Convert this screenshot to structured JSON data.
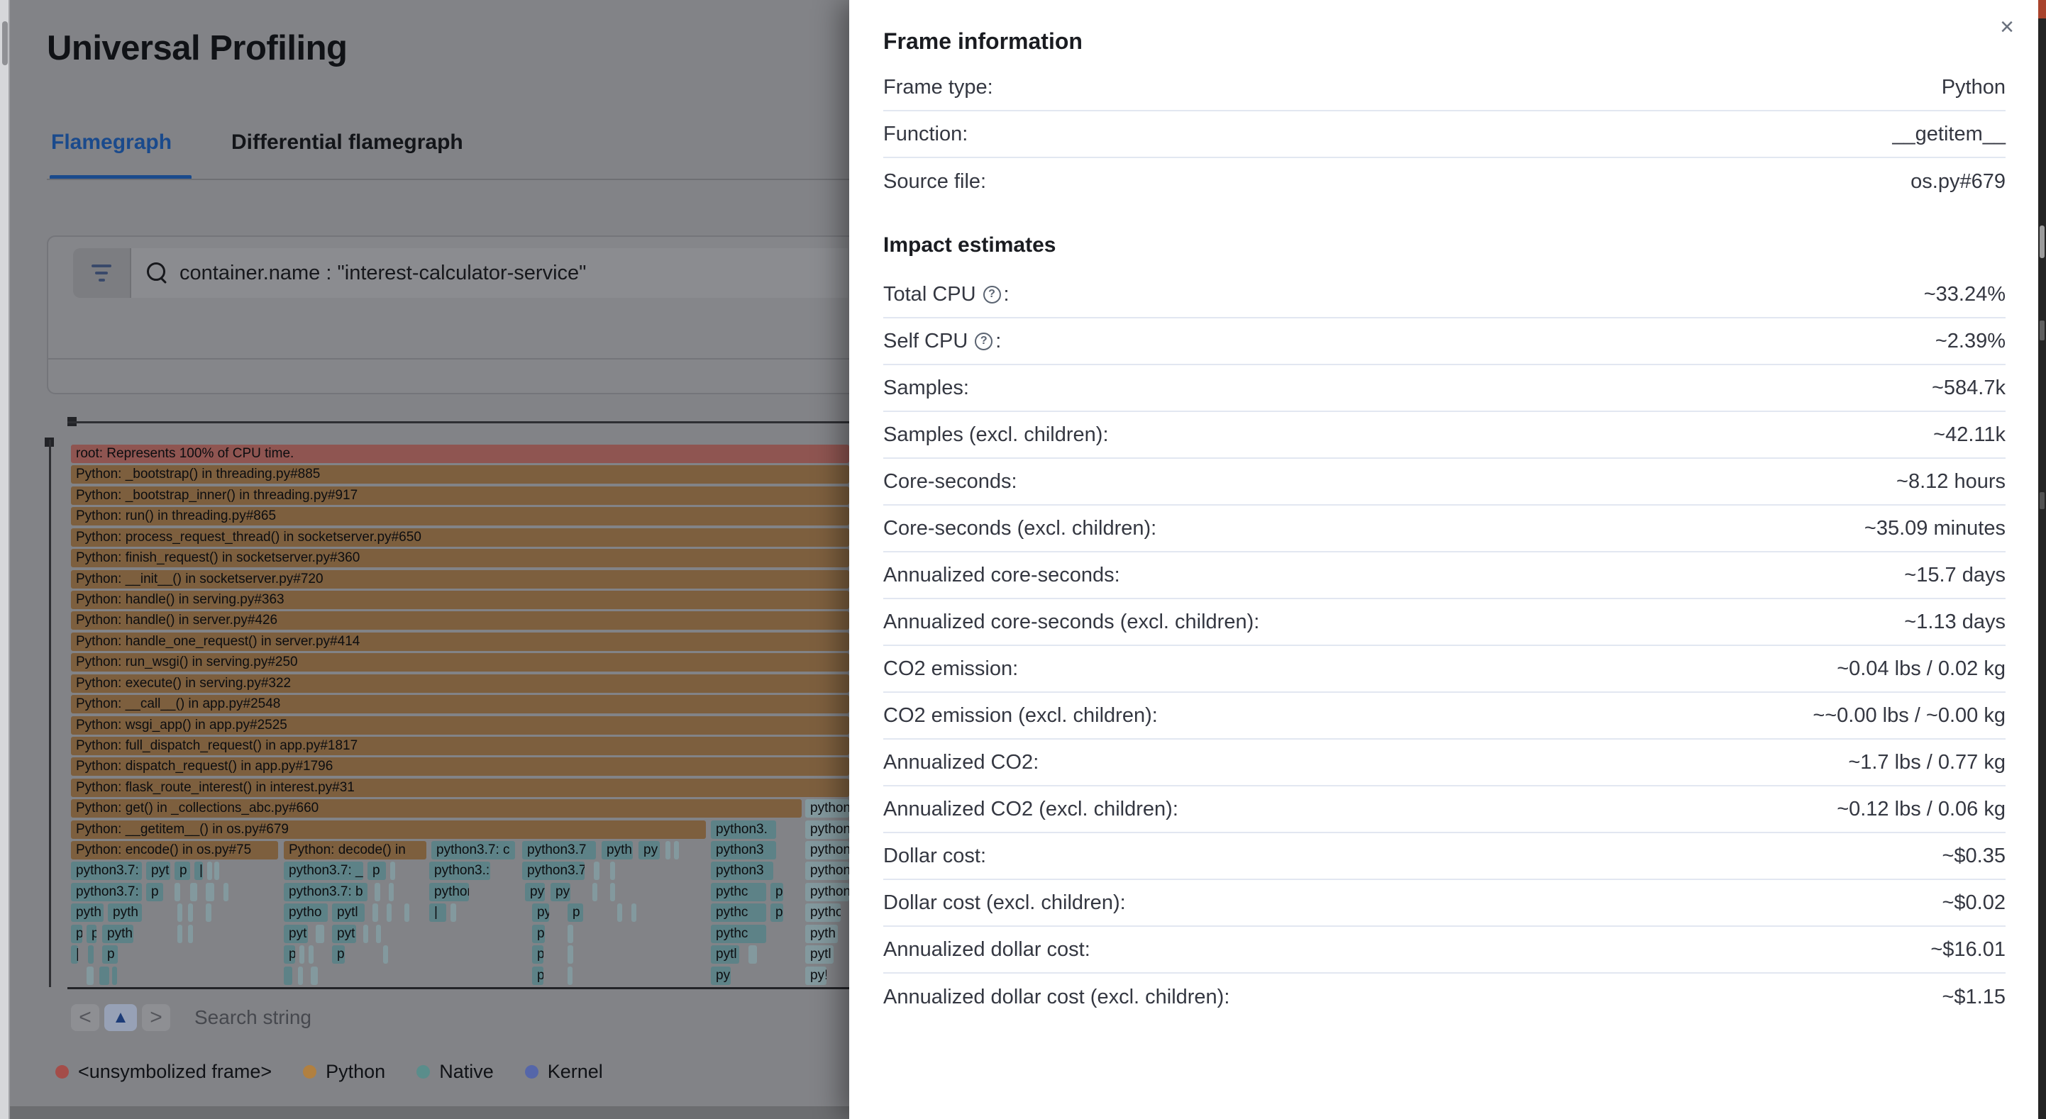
{
  "page": {
    "title": "Universal Profiling"
  },
  "tabs": [
    {
      "label": "Flamegraph",
      "active": true
    },
    {
      "label": "Differential flamegraph",
      "active": false
    }
  ],
  "search": {
    "query": "container.name : \"interest-calculator-service\""
  },
  "toolbar": {
    "prev_label": "<",
    "up_label": "▲",
    "next_label": ">",
    "search_placeholder": "Search string"
  },
  "icons": {
    "filter": "filter-icon",
    "search": "search-icon",
    "close": "×",
    "help": "?"
  },
  "colors": {
    "root": "#8f5551",
    "python": "#7d5f3e",
    "native": "#5d8287",
    "native_faded": "#83999e",
    "accent_blue": "#1a4a8c"
  },
  "legend": [
    {
      "label": "<unsymbolized frame>",
      "color": "#a44d49"
    },
    {
      "label": "Python",
      "color": "#b18040"
    },
    {
      "label": "Native",
      "color": "#5a8d8b"
    },
    {
      "label": "Kernel",
      "color": "#5566a9"
    }
  ],
  "flamegraph": {
    "rows": [
      {
        "blocks": [
          [
            0,
            1097,
            "r",
            "root: Represents 100% of CPU time."
          ]
        ]
      },
      {
        "blocks": [
          [
            0,
            1097,
            "p",
            "Python: _bootstrap() in threading.py#885"
          ]
        ]
      },
      {
        "blocks": [
          [
            0,
            1097,
            "p",
            "Python: _bootstrap_inner() in threading.py#917"
          ]
        ]
      },
      {
        "blocks": [
          [
            0,
            1097,
            "p",
            "Python: run() in threading.py#865"
          ]
        ]
      },
      {
        "blocks": [
          [
            0,
            1097,
            "p",
            "Python: process_request_thread() in socketserver.py#650"
          ]
        ]
      },
      {
        "blocks": [
          [
            0,
            1097,
            "p",
            "Python: finish_request() in socketserver.py#360"
          ]
        ]
      },
      {
        "blocks": [
          [
            0,
            1097,
            "p",
            "Python: __init__() in socketserver.py#720"
          ]
        ]
      },
      {
        "blocks": [
          [
            0,
            1097,
            "p",
            "Python: handle() in serving.py#363"
          ]
        ]
      },
      {
        "blocks": [
          [
            0,
            1097,
            "p",
            "Python: handle() in server.py#426"
          ]
        ]
      },
      {
        "blocks": [
          [
            0,
            1097,
            "p",
            "Python: handle_one_request() in server.py#414"
          ]
        ]
      },
      {
        "blocks": [
          [
            0,
            1097,
            "p",
            "Python: run_wsgi() in serving.py#250"
          ]
        ]
      },
      {
        "blocks": [
          [
            0,
            1097,
            "p",
            "Python: execute() in serving.py#322"
          ]
        ]
      },
      {
        "blocks": [
          [
            0,
            1097,
            "p",
            "Python: __call__() in app.py#2548"
          ]
        ]
      },
      {
        "blocks": [
          [
            0,
            1097,
            "p",
            "Python: wsgi_app() in app.py#2525"
          ]
        ]
      },
      {
        "blocks": [
          [
            0,
            1097,
            "p",
            "Python: full_dispatch_request() in app.py#1817"
          ]
        ]
      },
      {
        "blocks": [
          [
            0,
            1097,
            "p",
            "Python: dispatch_request() in app.py#1796"
          ]
        ]
      },
      {
        "blocks": [
          [
            0,
            1097,
            "p",
            "Python: flask_route_interest() in interest.py#31"
          ]
        ]
      },
      {
        "blocks": [
          [
            0,
            1030,
            "p",
            "Python: get() in _collections_abc.py#660"
          ],
          [
            1035,
            62,
            "f",
            "python"
          ]
        ]
      },
      {
        "blocks": [
          [
            0,
            895,
            "p",
            "Python: __getitem__() in os.py#679"
          ],
          [
            902,
            92,
            "n",
            "python3."
          ],
          [
            1035,
            62,
            "f",
            "python"
          ]
        ]
      },
      {
        "blocks": [
          [
            0,
            292,
            "p",
            "Python: encode() in os.py#75"
          ],
          [
            300,
            201,
            "p",
            "Python: decode() in"
          ],
          [
            508,
            118,
            "n",
            "python3.7: c"
          ],
          [
            636,
            104,
            "n",
            "python3.7"
          ],
          [
            748,
            44,
            "n",
            "pyth"
          ],
          [
            800,
            30,
            "n",
            "py"
          ],
          [
            838,
            6,
            "f",
            ""
          ],
          [
            850,
            5,
            "f",
            ""
          ],
          [
            902,
            92,
            "n",
            "python3"
          ],
          [
            1035,
            62,
            "f",
            "python"
          ]
        ]
      },
      {
        "blocks": [
          [
            0,
            100,
            "n",
            "python3.7:"
          ],
          [
            106,
            34,
            "n",
            "pyt"
          ],
          [
            146,
            22,
            "n",
            "p"
          ],
          [
            174,
            12,
            "n",
            "|"
          ],
          [
            192,
            5,
            "f",
            ""
          ],
          [
            202,
            4,
            "f",
            ""
          ],
          [
            300,
            112,
            "n",
            "python3.7: _"
          ],
          [
            418,
            26,
            "n",
            "p"
          ],
          [
            450,
            7,
            "f",
            ""
          ],
          [
            505,
            86,
            "n",
            "python3.:"
          ],
          [
            636,
            88,
            "n",
            "python3.7"
          ],
          [
            737,
            8,
            "f",
            ""
          ],
          [
            760,
            5,
            "f",
            ""
          ],
          [
            902,
            88,
            "n",
            "python3"
          ],
          [
            1035,
            62,
            "f",
            "python"
          ]
        ]
      },
      {
        "blocks": [
          [
            0,
            100,
            "n",
            "python3.7:"
          ],
          [
            106,
            24,
            "n",
            "p"
          ],
          [
            146,
            8,
            "f",
            ""
          ],
          [
            168,
            10,
            "f",
            ""
          ],
          [
            190,
            12,
            "f",
            ""
          ],
          [
            215,
            5,
            "f",
            ""
          ],
          [
            300,
            118,
            "n",
            "python3.7: b"
          ],
          [
            428,
            8,
            "f",
            ""
          ],
          [
            448,
            6,
            "f",
            ""
          ],
          [
            505,
            56,
            "n",
            "python"
          ],
          [
            640,
            28,
            "n",
            "pytl"
          ],
          [
            676,
            28,
            "n",
            "py!"
          ],
          [
            735,
            6,
            "f",
            ""
          ],
          [
            760,
            5,
            "f",
            ""
          ],
          [
            902,
            78,
            "n",
            "pythc"
          ],
          [
            986,
            18,
            "n",
            "p"
          ],
          [
            1035,
            62,
            "f",
            "python"
          ]
        ]
      },
      {
        "blocks": [
          [
            0,
            46,
            "n",
            "pyth"
          ],
          [
            52,
            48,
            "n",
            "pyth"
          ],
          [
            150,
            5,
            "f",
            ""
          ],
          [
            165,
            4,
            "f",
            ""
          ],
          [
            190,
            8,
            "f",
            ""
          ],
          [
            300,
            62,
            "n",
            "pytho"
          ],
          [
            368,
            46,
            "n",
            "pytl"
          ],
          [
            425,
            8,
            "f",
            ""
          ],
          [
            445,
            5,
            "f",
            ""
          ],
          [
            470,
            4,
            "f",
            ""
          ],
          [
            505,
            24,
            "n",
            "|"
          ],
          [
            535,
            8,
            "f",
            ""
          ],
          [
            650,
            24,
            "n",
            "py"
          ],
          [
            700,
            22,
            "n",
            "p"
          ],
          [
            770,
            5,
            "f",
            ""
          ],
          [
            790,
            4,
            "f",
            ""
          ],
          [
            902,
            78,
            "n",
            "pythc"
          ],
          [
            986,
            18,
            "n",
            "p"
          ],
          [
            1035,
            50,
            "f",
            "pytho"
          ]
        ]
      },
      {
        "blocks": [
          [
            0,
            16,
            "n",
            "p:"
          ],
          [
            22,
            14,
            "n",
            "p"
          ],
          [
            44,
            44,
            "n",
            "pyth"
          ],
          [
            150,
            5,
            "f",
            ""
          ],
          [
            165,
            4,
            "f",
            ""
          ],
          [
            300,
            34,
            "n",
            "pyt"
          ],
          [
            345,
            12,
            "f",
            ""
          ],
          [
            368,
            34,
            "n",
            "pyt"
          ],
          [
            412,
            6,
            "f",
            ""
          ],
          [
            430,
            4,
            "f",
            ""
          ],
          [
            650,
            18,
            "n",
            "p:"
          ],
          [
            700,
            8,
            "f",
            ""
          ],
          [
            902,
            78,
            "n",
            "pythc"
          ],
          [
            1035,
            46,
            "f",
            "pyth"
          ]
        ]
      },
      {
        "blocks": [
          [
            0,
            10,
            "n",
            "|"
          ],
          [
            24,
            8,
            "n",
            "|"
          ],
          [
            44,
            22,
            "n",
            "p"
          ],
          [
            300,
            16,
            "n",
            "p"
          ],
          [
            322,
            6,
            "f",
            ""
          ],
          [
            335,
            4,
            "f",
            ""
          ],
          [
            368,
            18,
            "n",
            "p"
          ],
          [
            440,
            4,
            "f",
            ""
          ],
          [
            650,
            16,
            "n",
            "p"
          ],
          [
            700,
            8,
            "f",
            ""
          ],
          [
            902,
            40,
            "n",
            "pytl"
          ],
          [
            955,
            12,
            "f",
            ""
          ],
          [
            1035,
            40,
            "f",
            "pytl"
          ]
        ]
      },
      {
        "blocks": [
          [
            22,
            10,
            "f",
            ""
          ],
          [
            40,
            14,
            "n",
            ""
          ],
          [
            58,
            6,
            "n",
            ""
          ],
          [
            300,
            12,
            "n",
            ""
          ],
          [
            320,
            4,
            "f",
            ""
          ],
          [
            338,
            10,
            "f",
            ""
          ],
          [
            650,
            16,
            "n",
            "p"
          ],
          [
            700,
            6,
            "f",
            ""
          ],
          [
            902,
            28,
            "n",
            "py"
          ],
          [
            1035,
            30,
            "f",
            "py!"
          ]
        ]
      },
      {
        "blocks": [
          [
            32,
            14,
            "n",
            ""
          ],
          [
            318,
            12,
            "n",
            ""
          ],
          [
            700,
            6,
            "f",
            ""
          ],
          [
            912,
            12,
            "n",
            ""
          ],
          [
            1035,
            18,
            "f",
            ""
          ]
        ]
      }
    ]
  },
  "flyout": {
    "title": "Frame information",
    "frame_rows": [
      {
        "label": "Frame type",
        "value": "Python",
        "help": false
      },
      {
        "label": "Function",
        "value": "__getitem__",
        "help": false
      },
      {
        "label": "Source file",
        "value": "os.py#679",
        "help": false
      }
    ],
    "impact_heading": "Impact estimates",
    "impact_rows": [
      {
        "label": "Total CPU",
        "value": "~33.24%",
        "help": true
      },
      {
        "label": "Self CPU",
        "value": "~2.39%",
        "help": true
      },
      {
        "label": "Samples",
        "value": "~584.7k",
        "help": false
      },
      {
        "label": "Samples (excl. children)",
        "value": "~42.11k",
        "help": false
      },
      {
        "label": "Core-seconds",
        "value": "~8.12 hours",
        "help": false
      },
      {
        "label": "Core-seconds (excl. children)",
        "value": "~35.09 minutes",
        "help": false
      },
      {
        "label": "Annualized core-seconds",
        "value": "~15.7 days",
        "help": false
      },
      {
        "label": "Annualized core-seconds (excl. children)",
        "value": "~1.13 days",
        "help": false
      },
      {
        "label": "CO2 emission",
        "value": "~0.04 lbs / 0.02 kg",
        "help": false
      },
      {
        "label": "CO2 emission (excl. children)",
        "value": "~~0.00 lbs / ~0.00 kg",
        "help": false
      },
      {
        "label": "Annualized CO2",
        "value": "~1.7 lbs / 0.77 kg",
        "help": false
      },
      {
        "label": "Annualized CO2 (excl. children)",
        "value": "~0.12 lbs / 0.06 kg",
        "help": false
      },
      {
        "label": "Dollar cost",
        "value": "~$0.35",
        "help": false
      },
      {
        "label": "Dollar cost (excl. children)",
        "value": "~$0.02",
        "help": false
      },
      {
        "label": "Annualized dollar cost",
        "value": "~$16.01",
        "help": false
      },
      {
        "label": "Annualized dollar cost (excl. children)",
        "value": "~$1.15",
        "help": false
      }
    ]
  }
}
